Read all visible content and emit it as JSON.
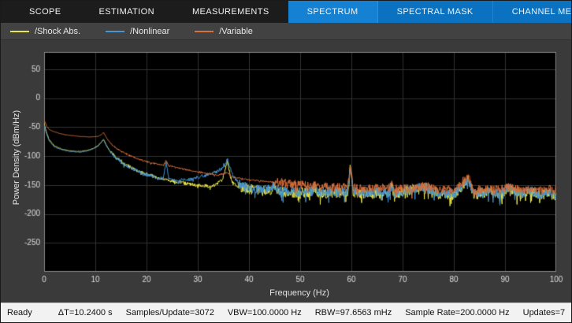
{
  "toolstrip": {
    "tabs_left": [
      {
        "label": "SCOPE"
      },
      {
        "label": "ESTIMATION"
      },
      {
        "label": "MEASUREMENTS"
      }
    ],
    "tabs_right": [
      {
        "label": "SPECTRUM"
      },
      {
        "label": "SPECTRAL MASK"
      },
      {
        "label": "CHANNEL MEAS···"
      }
    ],
    "active_tab": "SPECTRUM",
    "overflow_label": "•••",
    "accent_color": "#0a72c0"
  },
  "status": {
    "items": [
      "Ready",
      "ΔT=10.2400 s",
      "Samples/Update=3072",
      "VBW=100.0000 Hz",
      "RBW=97.6563 mHz",
      "Sample Rate=200.0000 Hz",
      "Updates=7"
    ]
  },
  "chart_data": {
    "type": "line",
    "title": "",
    "xlabel": "Frequency (Hz)",
    "ylabel": "Power Density (dBm/Hz)",
    "xlim": [
      0,
      100
    ],
    "ylim": [
      -300,
      80
    ],
    "xticks": [
      0,
      10,
      20,
      30,
      40,
      50,
      60,
      70,
      80,
      90,
      100
    ],
    "yticks": [
      50,
      0,
      -50,
      -100,
      -150,
      -200,
      -250
    ],
    "grid": true,
    "plot_bg": "#000000",
    "grid_color": "#323232",
    "frame_color": "#8a8a8a",
    "tick_color": "#dcdcdc",
    "series": [
      {
        "name": "/Shock Abs.",
        "color": "#e9e64b",
        "seed": 11,
        "noise": [
          [
            0,
            13,
            0.5
          ],
          [
            13,
            38,
            3
          ],
          [
            38,
            100,
            9
          ]
        ],
        "points": [
          [
            0,
            -44
          ],
          [
            0.5,
            -60
          ],
          [
            1,
            -72
          ],
          [
            2,
            -82
          ],
          [
            3.5,
            -88
          ],
          [
            5,
            -91
          ],
          [
            7,
            -92
          ],
          [
            8.5,
            -90
          ],
          [
            9.5,
            -87
          ],
          [
            10.5,
            -82
          ],
          [
            11.2,
            -75
          ],
          [
            11.6,
            -71
          ],
          [
            12.2,
            -82
          ],
          [
            13,
            -93
          ],
          [
            14,
            -102
          ],
          [
            15.5,
            -112
          ],
          [
            17,
            -120
          ],
          [
            19,
            -128
          ],
          [
            21,
            -134
          ],
          [
            23,
            -139
          ],
          [
            25,
            -143
          ],
          [
            27,
            -146
          ],
          [
            29,
            -149
          ],
          [
            31,
            -151
          ],
          [
            33,
            -152
          ],
          [
            34.8,
            -141
          ],
          [
            35.8,
            -110
          ],
          [
            36.6,
            -144
          ],
          [
            38,
            -154
          ],
          [
            40,
            -157
          ],
          [
            42,
            -159
          ],
          [
            44.3,
            -160
          ],
          [
            44.8,
            -146
          ],
          [
            45.4,
            -161
          ],
          [
            47,
            -162
          ],
          [
            49,
            -163
          ],
          [
            52.3,
            -163
          ],
          [
            52.8,
            -152
          ],
          [
            53.3,
            -164
          ],
          [
            56,
            -164
          ],
          [
            59.3,
            -163
          ],
          [
            59.8,
            -116
          ],
          [
            60.4,
            -164
          ],
          [
            63,
            -165
          ],
          [
            67.3,
            -165
          ],
          [
            67.8,
            -150
          ],
          [
            68.4,
            -166
          ],
          [
            71.8,
            -158
          ],
          [
            74.8,
            -153
          ],
          [
            77,
            -167
          ],
          [
            80,
            -167
          ],
          [
            82.8,
            -140
          ],
          [
            83.8,
            -167
          ],
          [
            87,
            -160
          ],
          [
            89,
            -168
          ],
          [
            91,
            -155
          ],
          [
            93,
            -168
          ],
          [
            94.8,
            -160
          ],
          [
            97,
            -169
          ],
          [
            98.5,
            -162
          ],
          [
            100,
            -172
          ]
        ]
      },
      {
        "name": "/Nonlinear",
        "color": "#4596d3",
        "seed": 23,
        "noise": [
          [
            0,
            13,
            0.5
          ],
          [
            13,
            38,
            3
          ],
          [
            38,
            100,
            9
          ]
        ],
        "points": [
          [
            0,
            -47
          ],
          [
            0.5,
            -62
          ],
          [
            1,
            -74
          ],
          [
            2,
            -84
          ],
          [
            3.5,
            -89
          ],
          [
            5,
            -92
          ],
          [
            7,
            -93
          ],
          [
            8.5,
            -91
          ],
          [
            9.5,
            -88
          ],
          [
            10.5,
            -83
          ],
          [
            11.2,
            -76
          ],
          [
            11.6,
            -72
          ],
          [
            12.2,
            -83
          ],
          [
            13,
            -94
          ],
          [
            14,
            -103
          ],
          [
            15.5,
            -113
          ],
          [
            17,
            -121
          ],
          [
            19,
            -129
          ],
          [
            21,
            -135
          ],
          [
            23.3,
            -139
          ],
          [
            23.8,
            -110
          ],
          [
            24.4,
            -140
          ],
          [
            26,
            -142
          ],
          [
            28,
            -141
          ],
          [
            30,
            -137
          ],
          [
            31.5,
            -133
          ],
          [
            33,
            -129
          ],
          [
            34.5,
            -123
          ],
          [
            35.8,
            -106
          ],
          [
            36.8,
            -132
          ],
          [
            38,
            -148
          ],
          [
            40,
            -154
          ],
          [
            42,
            -157
          ],
          [
            44.3,
            -158
          ],
          [
            44.8,
            -148
          ],
          [
            45.4,
            -159
          ],
          [
            47,
            -160
          ],
          [
            49,
            -161
          ],
          [
            52.3,
            -161
          ],
          [
            52.8,
            -153
          ],
          [
            53.3,
            -162
          ],
          [
            56,
            -162
          ],
          [
            59.3,
            -161
          ],
          [
            59.8,
            -118
          ],
          [
            60.4,
            -162
          ],
          [
            63,
            -163
          ],
          [
            67.3,
            -163
          ],
          [
            67.8,
            -151
          ],
          [
            68.4,
            -164
          ],
          [
            71.8,
            -157
          ],
          [
            74.8,
            -154
          ],
          [
            77,
            -165
          ],
          [
            80,
            -165
          ],
          [
            82.8,
            -144
          ],
          [
            83.8,
            -165
          ],
          [
            87,
            -159
          ],
          [
            89,
            -166
          ],
          [
            91,
            -154
          ],
          [
            93,
            -166
          ],
          [
            94.8,
            -159
          ],
          [
            97,
            -167
          ],
          [
            98.5,
            -161
          ],
          [
            100,
            -170
          ]
        ]
      },
      {
        "name": "/Variable",
        "color": "#d96f3b",
        "seed": 37,
        "noise": [
          [
            0,
            13,
            0.3
          ],
          [
            13,
            45,
            1.5
          ],
          [
            45,
            100,
            8
          ]
        ],
        "points": [
          [
            0,
            -37
          ],
          [
            0.5,
            -48
          ],
          [
            1,
            -54
          ],
          [
            2,
            -58
          ],
          [
            3.5,
            -62
          ],
          [
            5,
            -64
          ],
          [
            7,
            -66
          ],
          [
            9,
            -67
          ],
          [
            10.5,
            -66
          ],
          [
            11.3,
            -62
          ],
          [
            11.6,
            -59
          ],
          [
            12.3,
            -70
          ],
          [
            13,
            -78
          ],
          [
            14,
            -86
          ],
          [
            15.5,
            -94
          ],
          [
            17,
            -100
          ],
          [
            19,
            -107
          ],
          [
            21,
            -112
          ],
          [
            23.3,
            -116
          ],
          [
            23.8,
            -108
          ],
          [
            24.4,
            -117
          ],
          [
            26,
            -120
          ],
          [
            28,
            -124
          ],
          [
            30,
            -127
          ],
          [
            32,
            -130
          ],
          [
            34,
            -133
          ],
          [
            35.8,
            -128
          ],
          [
            36.6,
            -136
          ],
          [
            38,
            -138
          ],
          [
            40,
            -141
          ],
          [
            42,
            -143
          ],
          [
            44.8,
            -145
          ],
          [
            47,
            -147
          ],
          [
            49,
            -149
          ],
          [
            52,
            -151
          ],
          [
            55,
            -153
          ],
          [
            58,
            -154
          ],
          [
            59.3,
            -154
          ],
          [
            59.8,
            -120
          ],
          [
            60.4,
            -155
          ],
          [
            63,
            -156
          ],
          [
            67.3,
            -156
          ],
          [
            67.8,
            -148
          ],
          [
            68.4,
            -157
          ],
          [
            71.8,
            -156
          ],
          [
            74.8,
            -152
          ],
          [
            77,
            -158
          ],
          [
            80,
            -158
          ],
          [
            82.8,
            -136
          ],
          [
            83.8,
            -159
          ],
          [
            87,
            -157
          ],
          [
            89,
            -159
          ],
          [
            91,
            -153
          ],
          [
            93,
            -160
          ],
          [
            94.8,
            -156
          ],
          [
            97,
            -160
          ],
          [
            98.5,
            -158
          ],
          [
            100,
            -158
          ]
        ]
      }
    ]
  }
}
